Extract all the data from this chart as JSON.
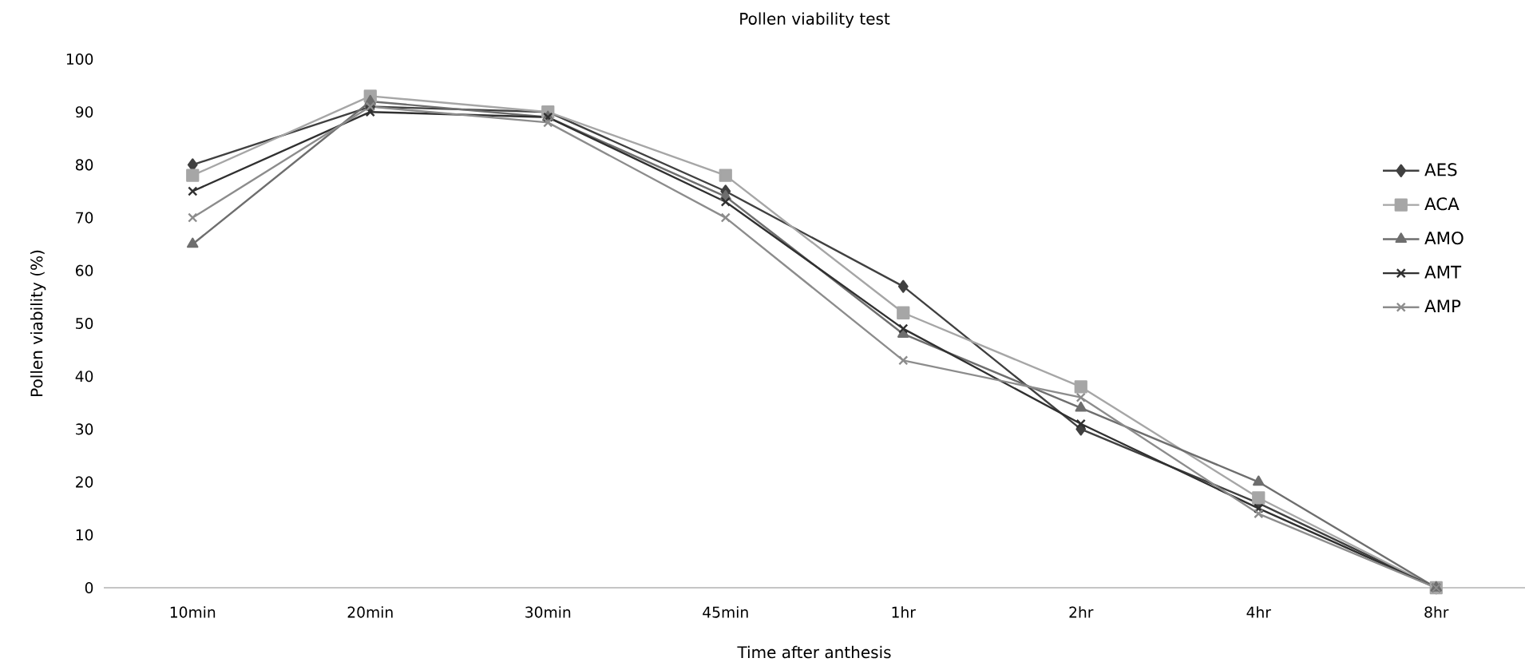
{
  "chart_data": {
    "type": "line",
    "title": "Pollen viability test",
    "xlabel": "Time after anthesis",
    "ylabel": "Pollen viability (%)",
    "categories": [
      "10min",
      "20min",
      "30min",
      "45min",
      "1hr",
      "2hr",
      "4hr",
      "8hr"
    ],
    "series": [
      {
        "name": "AES",
        "color": "#404040",
        "marker": "diamond",
        "values": [
          80,
          91,
          90,
          75,
          57,
          30,
          16,
          0
        ]
      },
      {
        "name": "ACA",
        "color": "#a6a6a6",
        "marker": "square",
        "values": [
          78,
          93,
          90,
          78,
          52,
          38,
          17,
          0
        ]
      },
      {
        "name": "AMO",
        "color": "#6e6e6e",
        "marker": "triangle",
        "values": [
          65,
          92,
          89,
          74,
          48,
          34,
          20,
          0
        ]
      },
      {
        "name": "AMT",
        "color": "#303030",
        "marker": "cross",
        "values": [
          75,
          90,
          89,
          73,
          49,
          31,
          15,
          0
        ]
      },
      {
        "name": "AMP",
        "color": "#8c8c8c",
        "marker": "cross",
        "values": [
          70,
          91,
          88,
          70,
          43,
          36,
          14,
          0
        ]
      }
    ],
    "ylim": [
      0,
      100
    ],
    "yticks": [
      0,
      10,
      20,
      30,
      40,
      50,
      60,
      70,
      80,
      90,
      100
    ],
    "grid": false,
    "legend": "top right"
  }
}
